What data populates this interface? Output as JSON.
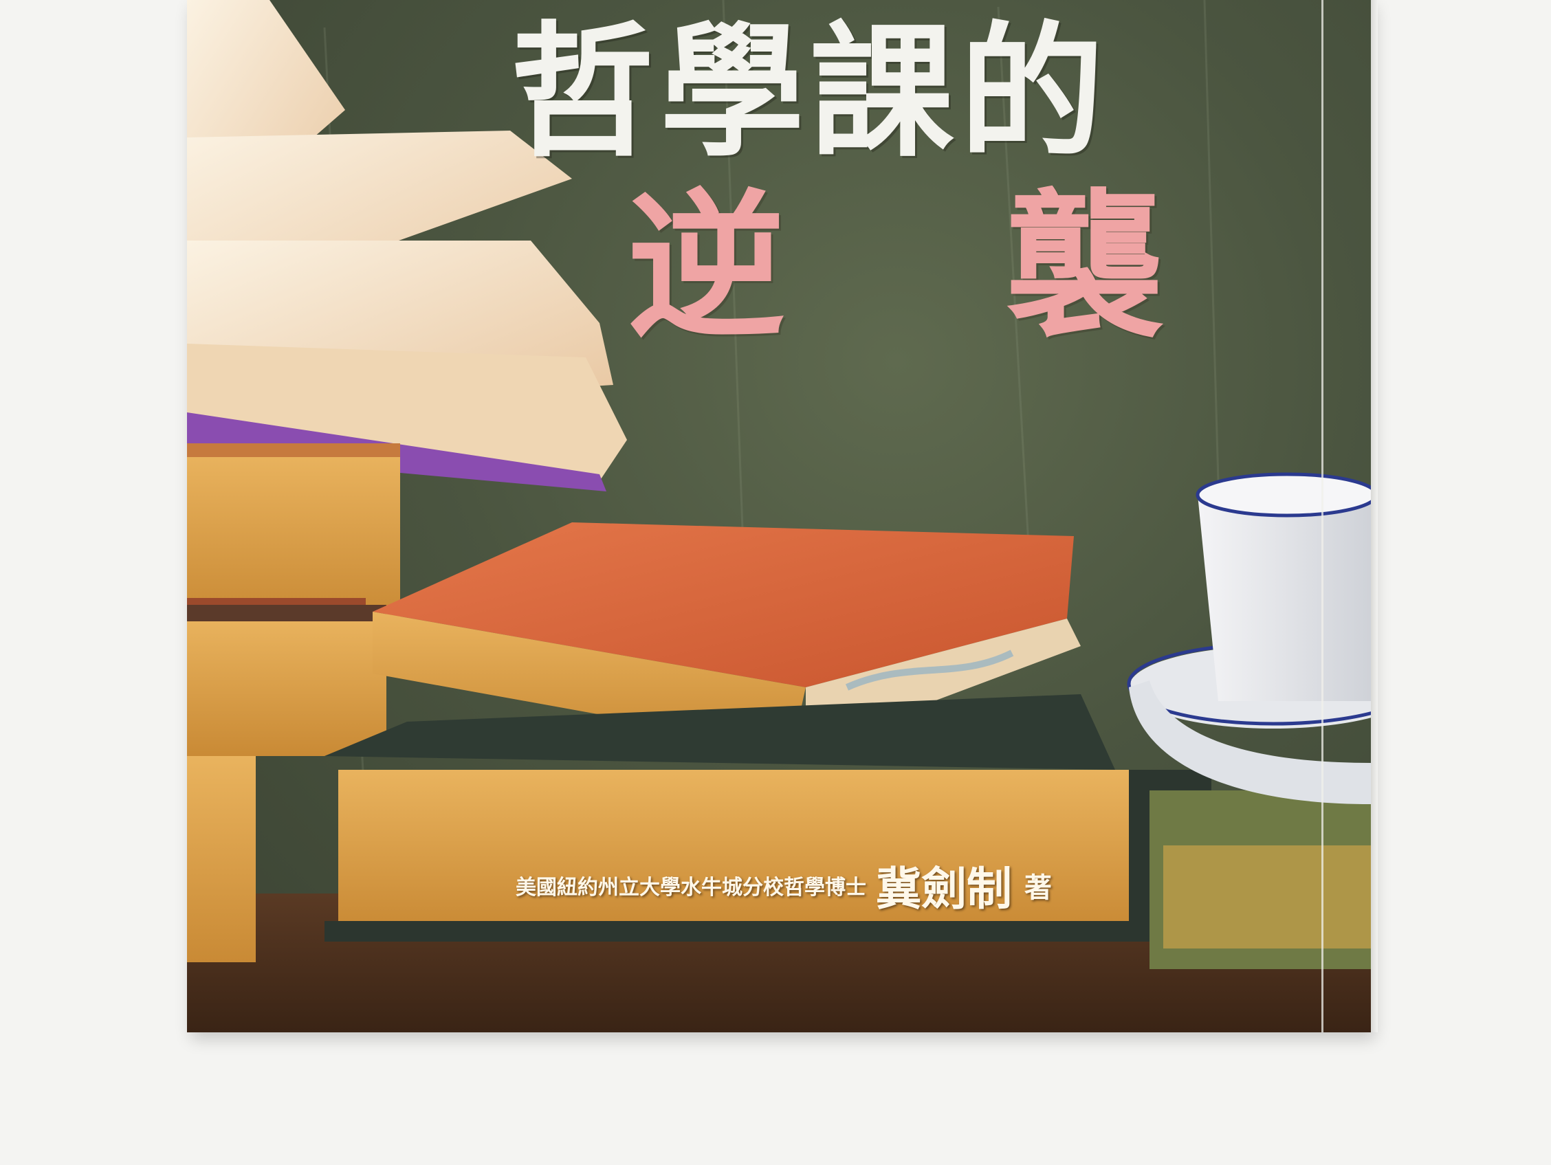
{
  "cover": {
    "title_line1": "哲學課的",
    "title_line2": "逆 襲",
    "author_affiliation": "美國紐約州立大學水牛城分校哲學博士",
    "author_name": "冀劍制",
    "author_suffix": "著"
  },
  "colors": {
    "chalkboard": "#4b5540",
    "title_white": "#f3f3ee",
    "title_pink": "#efa4a4",
    "book_orange": "#d9673e",
    "page_edge_gold": "#d9a04a",
    "shelf_wood": "#4a2c1a"
  }
}
